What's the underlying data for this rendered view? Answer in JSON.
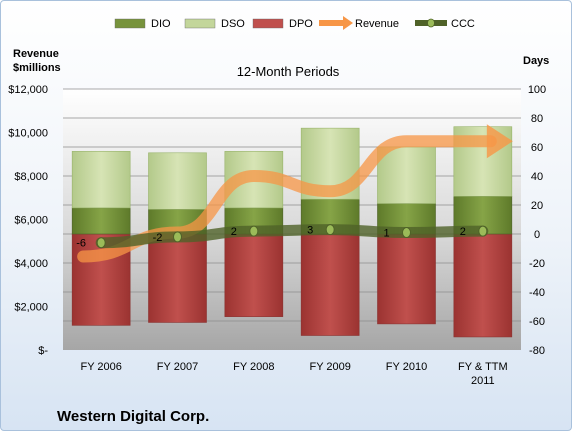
{
  "chart_data": {
    "type": "bar",
    "title": "12-Month Periods",
    "company": "Western Digital Corp.",
    "left_axis_label": [
      "Revenue",
      "$millions"
    ],
    "right_axis_label": "Days",
    "categories": [
      "FY 2006",
      "FY 2007",
      "FY 2008",
      "FY 2009",
      "FY 2010",
      "FY & TTM 2011"
    ],
    "left_ticks": [
      "$-",
      "$2,000",
      "$4,000",
      "$6,000",
      "$8,000",
      "$10,000",
      "$12,000"
    ],
    "right_ticks": [
      "-80",
      "-60",
      "-40",
      "-20",
      "0",
      "20",
      "40",
      "60",
      "80",
      "100"
    ],
    "ylim_left": [
      0,
      12000
    ],
    "ylim_right": [
      -80,
      100
    ],
    "grid": true,
    "legend_position": "top",
    "legend": [
      {
        "name": "DIO",
        "kind": "bar",
        "color": "#77933c"
      },
      {
        "name": "DSO",
        "kind": "bar",
        "color": "#c3d69b"
      },
      {
        "name": "DPO",
        "kind": "bar",
        "color": "#c0504d"
      },
      {
        "name": "Revenue",
        "kind": "arrow",
        "color": "#f79646"
      },
      {
        "name": "CCC",
        "kind": "line",
        "color": "#4f6228"
      }
    ],
    "series": [
      {
        "name": "DPO",
        "axis": "days",
        "values": [
          -63,
          -61,
          -57,
          -70,
          -62,
          -71
        ]
      },
      {
        "name": "DIO",
        "axis": "days",
        "values": [
          18,
          17,
          18,
          24,
          21,
          26
        ]
      },
      {
        "name": "DSO",
        "axis": "days",
        "values": [
          39,
          39,
          39,
          49,
          39,
          48
        ]
      },
      {
        "name": "Revenue",
        "axis": "left",
        "values": [
          4300,
          5400,
          8000,
          7300,
          9600,
          9600
        ]
      },
      {
        "name": "CCC",
        "axis": "days",
        "values": [
          -6,
          -2,
          2,
          3,
          1,
          2
        ]
      }
    ],
    "ccc_labels": [
      "-6",
      "-2",
      "2",
      "3",
      "1",
      "2"
    ]
  }
}
